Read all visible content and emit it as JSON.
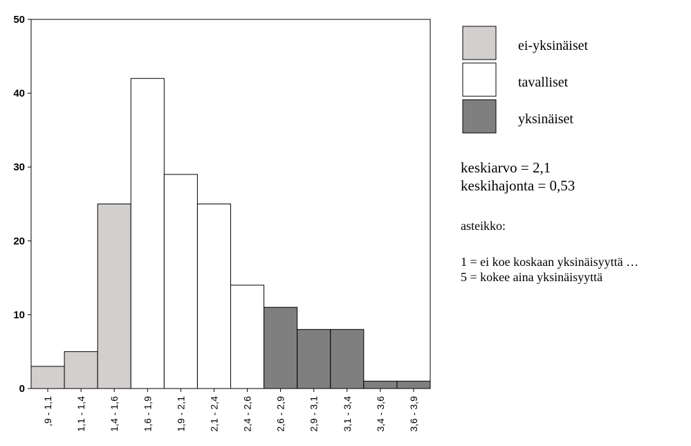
{
  "chart_data": {
    "type": "bar",
    "categories": [
      ",9 - 1,1",
      "1,1 - 1,4",
      "1,4 - 1,6",
      "1,6 - 1,9",
      "1,9 - 2,1",
      "2,1 - 2,4",
      "2,4 - 2,6",
      "2,6 - 2,9",
      "2,9 - 3,1",
      "3,1 - 3,4",
      "3,4 - 3,6",
      "3,6 - 3,9"
    ],
    "values": [
      3,
      5,
      25,
      42,
      29,
      25,
      14,
      11,
      8,
      8,
      1,
      1
    ],
    "groups": [
      0,
      0,
      0,
      1,
      1,
      1,
      1,
      2,
      2,
      2,
      2,
      2
    ],
    "ylim": [
      0,
      50
    ],
    "yticks": [
      0,
      10,
      20,
      30,
      40,
      50
    ],
    "grid": false,
    "legend_position": "right",
    "legend": [
      {
        "name": "ei-yksinäiset",
        "color": "#d3cfcf"
      },
      {
        "name": "tavalliset",
        "color": "#ffffff"
      },
      {
        "name": "yksinäiset",
        "color": "#7f7f7f"
      }
    ]
  },
  "info": {
    "mean": "keskiarvo = 2,1",
    "sd": "keskihajonta = 0,53",
    "scale_title": "asteikko:",
    "scale_min": "1 = ei koe koskaan yksinäisyyttä …",
    "scale_max": "5 = kokee aina yksinäisyyttä"
  }
}
